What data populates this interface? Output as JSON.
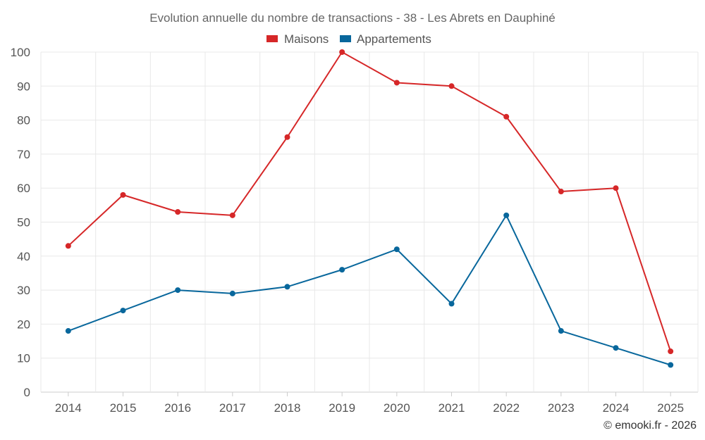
{
  "chart_data": {
    "type": "line",
    "title": "Evolution annuelle du nombre de transactions - 38 - Les Abrets en Dauphiné",
    "categories": [
      "2014",
      "2015",
      "2016",
      "2017",
      "2018",
      "2019",
      "2020",
      "2021",
      "2022",
      "2023",
      "2024",
      "2025"
    ],
    "series": [
      {
        "name": "Maisons",
        "color": "#d62728",
        "values": [
          43,
          58,
          53,
          52,
          75,
          100,
          91,
          90,
          81,
          59,
          60,
          12
        ]
      },
      {
        "name": "Appartements",
        "color": "#08679c",
        "values": [
          18,
          24,
          30,
          29,
          31,
          36,
          42,
          26,
          52,
          18,
          13,
          8
        ]
      }
    ],
    "ylim": [
      0,
      100
    ],
    "yticks": [
      "0",
      "10",
      "20",
      "30",
      "40",
      "50",
      "60",
      "70",
      "80",
      "90",
      "100"
    ],
    "grid": true,
    "legend_position": "top-center",
    "xlabel": "",
    "ylabel": ""
  },
  "credit": "© emooki.fr - 2026"
}
